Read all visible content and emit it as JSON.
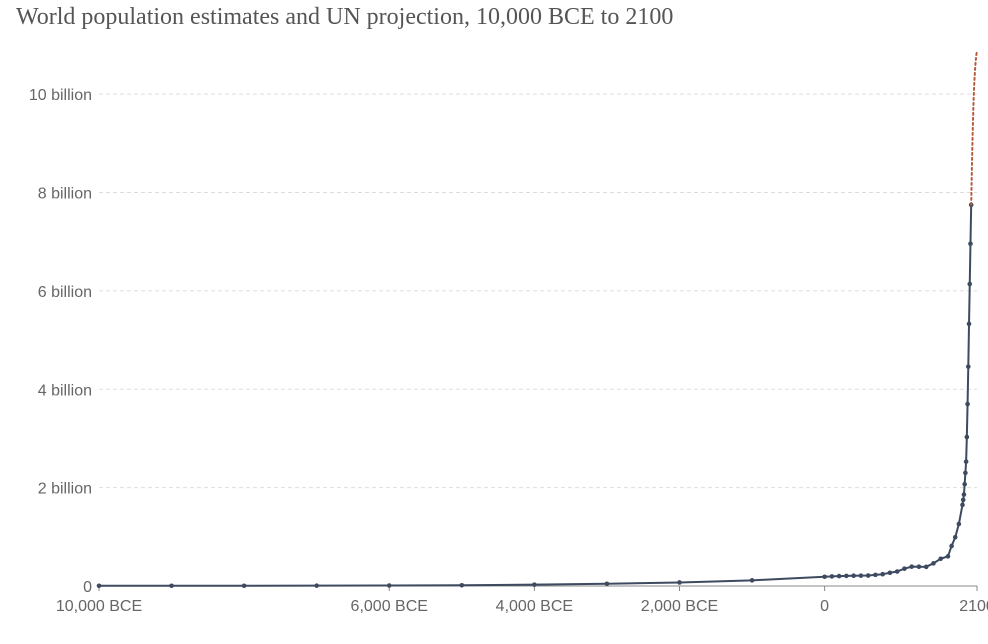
{
  "chart_data": {
    "type": "line",
    "title": "World population estimates and UN projection, 10,000 BCE to 2100",
    "xlabel": "",
    "ylabel": "",
    "xlim": [
      -10000,
      2100
    ],
    "ylim": [
      0,
      11000000000
    ],
    "grid": true,
    "y_ticks": [
      {
        "value": 0,
        "label": "0"
      },
      {
        "value": 2000000000,
        "label": "2 billion"
      },
      {
        "value": 4000000000,
        "label": "4 billion"
      },
      {
        "value": 6000000000,
        "label": "6 billion"
      },
      {
        "value": 8000000000,
        "label": "8 billion"
      },
      {
        "value": 10000000000,
        "label": "10 billion"
      }
    ],
    "x_ticks": [
      {
        "value": -10000,
        "label": "10,000 BCE"
      },
      {
        "value": -6000,
        "label": "6,000 BCE"
      },
      {
        "value": -4000,
        "label": "4,000 BCE"
      },
      {
        "value": -2000,
        "label": "2,000 BCE"
      },
      {
        "value": 0,
        "label": "0"
      },
      {
        "value": 2100,
        "label": "2100"
      }
    ],
    "colors": {
      "estimates": "#3d4a5f",
      "projection": "#b85a3c",
      "grid": "#dddddd",
      "text": "#666666"
    },
    "series": [
      {
        "style": "solid-with-markers",
        "x": [
          -10000,
          -9000,
          -8000,
          -7000,
          -6000,
          -5000,
          -4000,
          -3000,
          -2000,
          -1000,
          0,
          100,
          200,
          300,
          400,
          500,
          600,
          700,
          800,
          900,
          1000,
          1100,
          1200,
          1300,
          1400,
          1500,
          1600,
          1700,
          1750,
          1800,
          1850,
          1900,
          1910,
          1920,
          1930,
          1940,
          1950,
          1960,
          1970,
          1980,
          1990,
          2000,
          2010,
          2020
        ],
        "values": [
          4000000,
          5000000,
          5000000,
          7000000,
          10000000,
          14000000,
          27000000,
          45000000,
          72000000,
          115000000,
          188000000,
          195000000,
          202000000,
          205000000,
          209000000,
          210000000,
          213000000,
          226000000,
          240000000,
          269000000,
          295000000,
          353000000,
          393000000,
          392000000,
          390000000,
          461000000,
          554000000,
          603000000,
          814000000,
          990000000,
          1260000000,
          1650000000,
          1750000000,
          1860000000,
          2070000000,
          2300000000,
          2530000000,
          3030000000,
          3700000000,
          4460000000,
          5330000000,
          6140000000,
          6960000000,
          7750000000
        ]
      },
      {
        "style": "dotted",
        "x": [
          2020,
          2030,
          2040,
          2050,
          2060,
          2070,
          2080,
          2090,
          2100
        ],
        "values": [
          7750000000,
          8550000000,
          9200000000,
          9740000000,
          10150000000,
          10430000000,
          10640000000,
          10790000000,
          10880000000
        ]
      }
    ]
  }
}
